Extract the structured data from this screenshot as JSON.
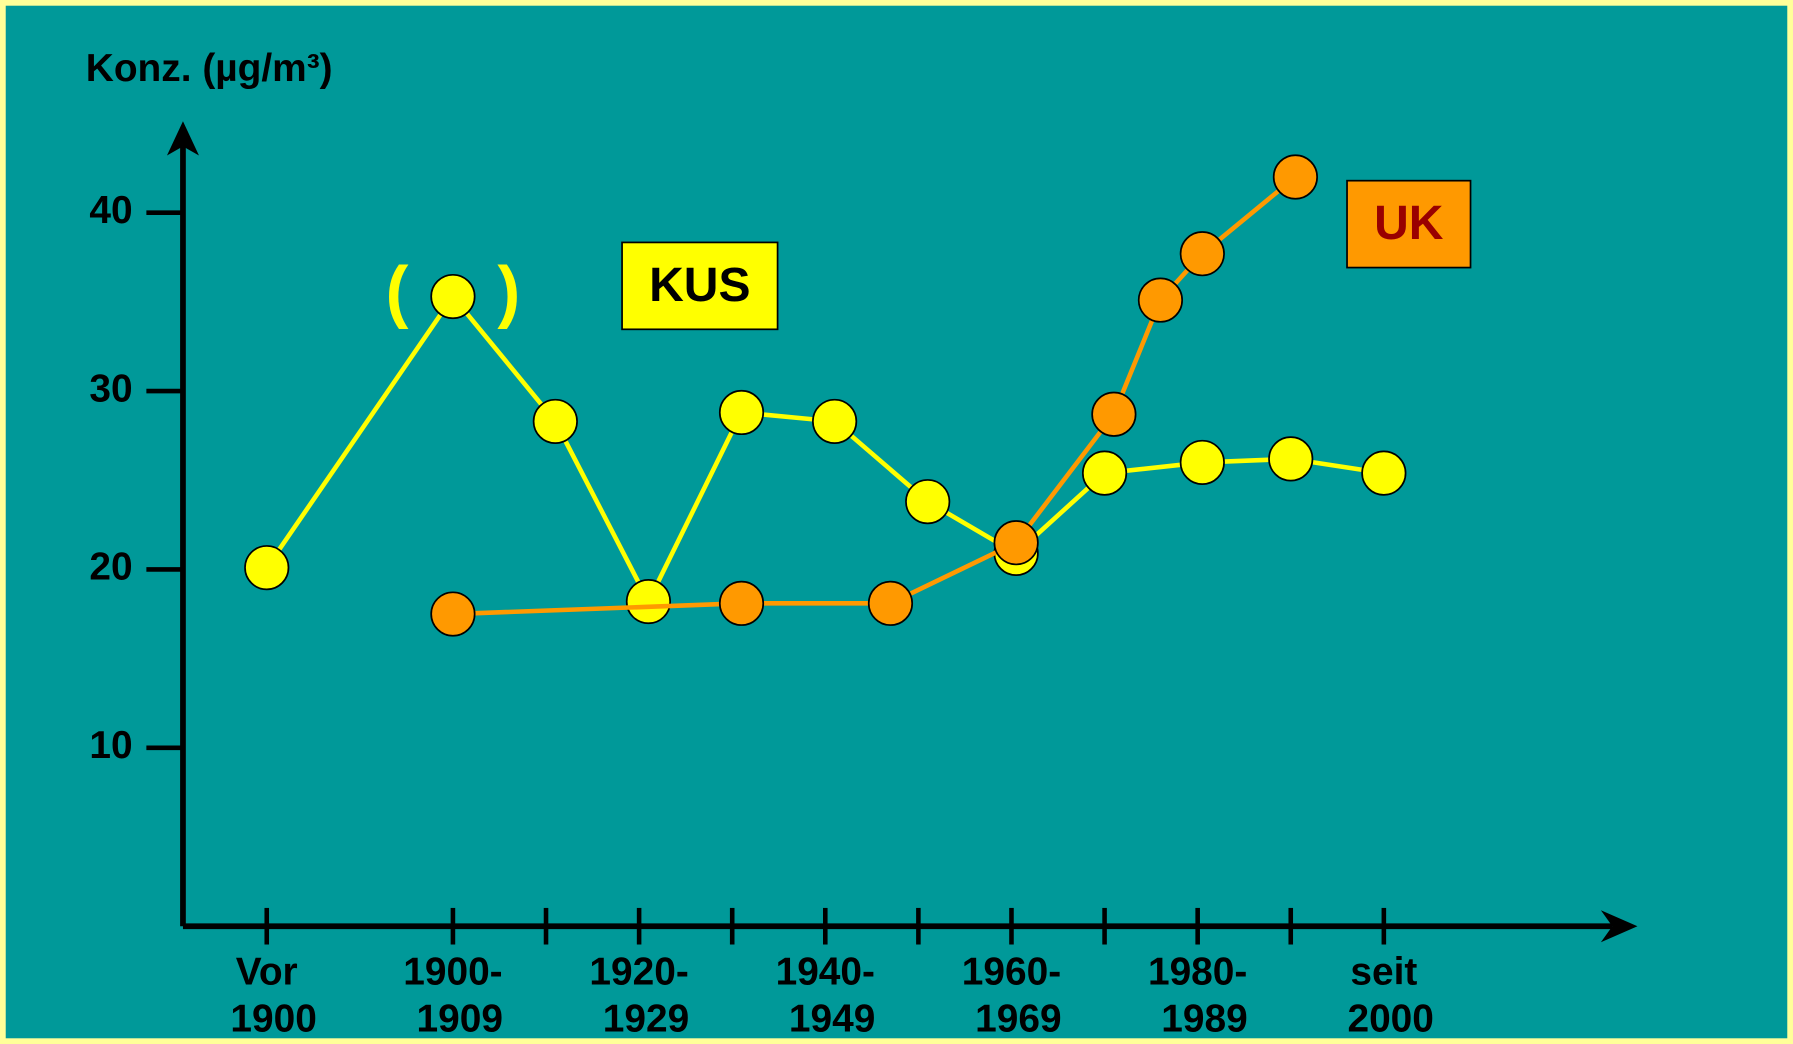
{
  "chart_data": {
    "type": "line",
    "y_label": "Konz. (µg/m³)",
    "xlim": [
      -0.9,
      14.7
    ],
    "ylim": [
      0,
      45
    ],
    "yticks": [
      10,
      20,
      30,
      40
    ],
    "xticks": [
      {
        "value": 0,
        "label": [
          "Vor",
          "1900"
        ]
      },
      {
        "value": 2,
        "label": [
          "1900-",
          "1909"
        ]
      },
      {
        "value": 3,
        "label": null
      },
      {
        "value": 4,
        "label": [
          "1920-",
          "1929"
        ]
      },
      {
        "value": 5,
        "label": null
      },
      {
        "value": 6,
        "label": [
          "1940-",
          "1949"
        ]
      },
      {
        "value": 7,
        "label": null
      },
      {
        "value": 8,
        "label": [
          "1960-",
          "1969"
        ]
      },
      {
        "value": 9,
        "label": null
      },
      {
        "value": 10,
        "label": [
          "1980-",
          "1989"
        ]
      },
      {
        "value": 11,
        "label": null
      },
      {
        "value": 12,
        "label": [
          "seit",
          "2000"
        ]
      }
    ],
    "series": [
      {
        "name": "KUS",
        "color": "#ffff00",
        "text_color": "#000000",
        "x": [
          0,
          2,
          3.1,
          4.1,
          5.1,
          6.1,
          7.1,
          8.05,
          9.0,
          10.05,
          11.0,
          12.0
        ],
        "values": [
          20.1,
          35.3,
          28.3,
          18.2,
          28.8,
          28.3,
          23.8,
          20.9,
          25.4,
          26.0,
          26.2,
          25.4
        ]
      },
      {
        "name": "UK",
        "color": "#ff9900",
        "text_color": "#990000",
        "x": [
          2.0,
          5.1,
          6.7,
          8.05,
          9.1,
          9.6,
          10.05,
          11.05
        ],
        "values": [
          17.5,
          18.1,
          18.1,
          21.5,
          28.7,
          35.1,
          37.7,
          42.0
        ]
      }
    ],
    "annotations": [
      {
        "text": "(",
        "x": 1.4,
        "y": 35.3,
        "color": "#ffff00"
      },
      {
        "text": ")",
        "x": 2.6,
        "y": 35.3,
        "color": "#ffff00"
      }
    ]
  }
}
